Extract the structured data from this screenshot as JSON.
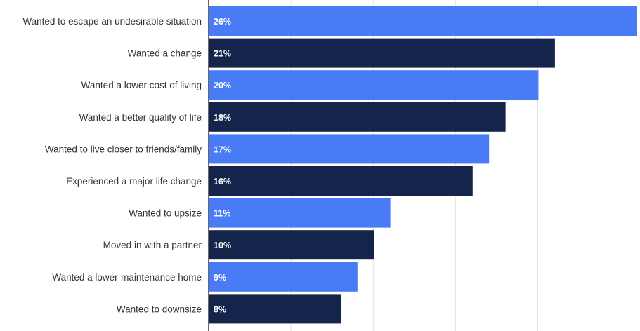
{
  "chart_data": {
    "type": "bar",
    "orientation": "horizontal",
    "categories": [
      "Wanted to escape an undesirable situation",
      "Wanted a change",
      "Wanted a lower cost of living",
      "Wanted a better quality of life",
      "Wanted to live closer to friends/family",
      "Experienced a major life change",
      "Wanted to upsize",
      "Moved in with a partner",
      "Wanted a lower-maintenance home",
      "Wanted to downsize"
    ],
    "values": [
      26,
      21,
      20,
      18,
      17,
      16,
      11,
      10,
      9,
      8
    ],
    "value_labels": [
      "26%",
      "21%",
      "20%",
      "18%",
      "17%",
      "16%",
      "11%",
      "10%",
      "9%",
      "8%"
    ],
    "unit": "%",
    "xlim": [
      0,
      26
    ],
    "grid": true,
    "colors": [
      "#4a7bf7",
      "#14244a"
    ]
  }
}
